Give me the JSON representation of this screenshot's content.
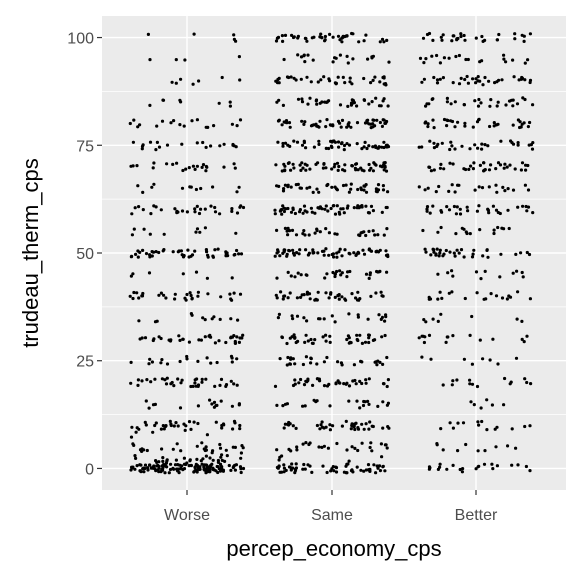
{
  "chart_data": {
    "type": "scatter",
    "title": "",
    "xlabel": "percep_economy_cps",
    "ylabel": "trudeau_therm_cps",
    "categories": [
      "Worse",
      "Same",
      "Better"
    ],
    "y_ticks": [
      0,
      25,
      50,
      75,
      100
    ],
    "ylim": [
      -5,
      105
    ],
    "grid": true,
    "jitter": true,
    "point_color": "#000000",
    "panel_background": "#ebebeb",
    "grid_color": "#ffffff",
    "series": [
      {
        "category": "Worse",
        "levels": [
          {
            "y": 0,
            "count": 120
          },
          {
            "y": 1,
            "count": 20
          },
          {
            "y": 2,
            "count": 14
          },
          {
            "y": 3,
            "count": 8
          },
          {
            "y": 5,
            "count": 24
          },
          {
            "y": 8,
            "count": 5
          },
          {
            "y": 10,
            "count": 34
          },
          {
            "y": 15,
            "count": 16
          },
          {
            "y": 20,
            "count": 36
          },
          {
            "y": 25,
            "count": 18
          },
          {
            "y": 30,
            "count": 36
          },
          {
            "y": 35,
            "count": 12
          },
          {
            "y": 40,
            "count": 30
          },
          {
            "y": 45,
            "count": 7
          },
          {
            "y": 50,
            "count": 48
          },
          {
            "y": 55,
            "count": 10
          },
          {
            "y": 60,
            "count": 30
          },
          {
            "y": 65,
            "count": 12
          },
          {
            "y": 70,
            "count": 22
          },
          {
            "y": 75,
            "count": 20
          },
          {
            "y": 80,
            "count": 18
          },
          {
            "y": 85,
            "count": 8
          },
          {
            "y": 90,
            "count": 7
          },
          {
            "y": 95,
            "count": 4
          },
          {
            "y": 100,
            "count": 5
          }
        ]
      },
      {
        "category": "Same",
        "levels": [
          {
            "y": 0,
            "count": 60
          },
          {
            "y": 2,
            "count": 8
          },
          {
            "y": 5,
            "count": 26
          },
          {
            "y": 10,
            "count": 40
          },
          {
            "y": 15,
            "count": 22
          },
          {
            "y": 20,
            "count": 40
          },
          {
            "y": 25,
            "count": 30
          },
          {
            "y": 30,
            "count": 42
          },
          {
            "y": 35,
            "count": 22
          },
          {
            "y": 40,
            "count": 44
          },
          {
            "y": 45,
            "count": 30
          },
          {
            "y": 50,
            "count": 65
          },
          {
            "y": 55,
            "count": 32
          },
          {
            "y": 60,
            "count": 60
          },
          {
            "y": 65,
            "count": 44
          },
          {
            "y": 70,
            "count": 60
          },
          {
            "y": 75,
            "count": 52
          },
          {
            "y": 80,
            "count": 56
          },
          {
            "y": 85,
            "count": 36
          },
          {
            "y": 90,
            "count": 40
          },
          {
            "y": 95,
            "count": 20
          },
          {
            "y": 100,
            "count": 44
          }
        ]
      },
      {
        "category": "Better",
        "levels": [
          {
            "y": 0,
            "count": 22
          },
          {
            "y": 5,
            "count": 10
          },
          {
            "y": 10,
            "count": 14
          },
          {
            "y": 15,
            "count": 6
          },
          {
            "y": 20,
            "count": 14
          },
          {
            "y": 25,
            "count": 8
          },
          {
            "y": 30,
            "count": 16
          },
          {
            "y": 35,
            "count": 8
          },
          {
            "y": 40,
            "count": 20
          },
          {
            "y": 45,
            "count": 12
          },
          {
            "y": 50,
            "count": 34
          },
          {
            "y": 55,
            "count": 16
          },
          {
            "y": 60,
            "count": 32
          },
          {
            "y": 65,
            "count": 22
          },
          {
            "y": 70,
            "count": 36
          },
          {
            "y": 75,
            "count": 30
          },
          {
            "y": 80,
            "count": 34
          },
          {
            "y": 85,
            "count": 28
          },
          {
            "y": 90,
            "count": 34
          },
          {
            "y": 95,
            "count": 20
          },
          {
            "y": 100,
            "count": 30
          }
        ]
      }
    ]
  }
}
